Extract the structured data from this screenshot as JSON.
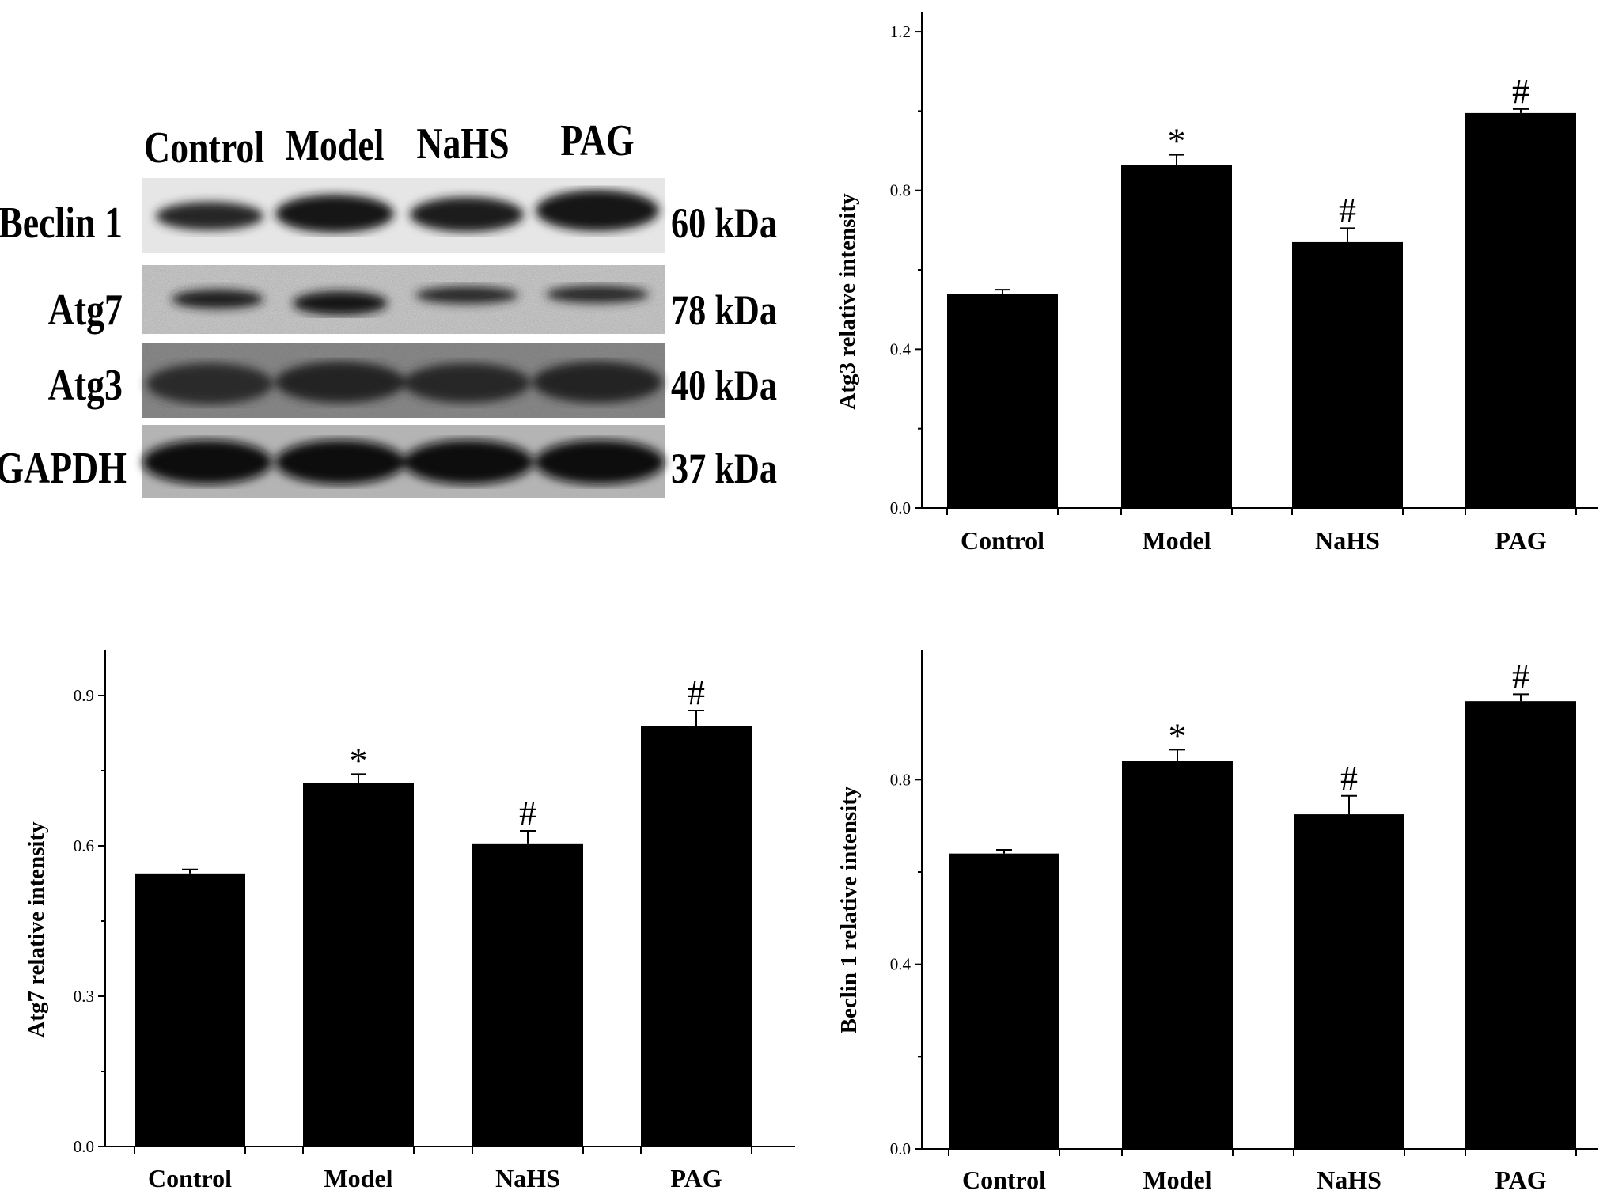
{
  "blot": {
    "lanes": [
      "Control",
      "Model",
      "NaHS",
      "PAG"
    ],
    "rows": [
      {
        "protein": "Beclin 1",
        "size": "60 kDa"
      },
      {
        "protein": "Atg7",
        "size": "78 kDa"
      },
      {
        "protein": "Atg3",
        "size": "40 kDa"
      },
      {
        "protein": "GAPDH",
        "size": "37 kDa"
      }
    ]
  },
  "chart_data": [
    {
      "type": "bar",
      "panel": "top-right",
      "categories": [
        "Control",
        "Model",
        "NaHS",
        "PAG"
      ],
      "values": [
        0.54,
        0.865,
        0.67,
        0.995
      ],
      "errors": [
        0.01,
        0.025,
        0.035,
        0.01
      ],
      "annotations": [
        "",
        "*",
        "#",
        "#"
      ],
      "ylabel": "Atg3 relative intensity",
      "ylim": [
        0,
        1.25
      ],
      "yticks": [
        0.0,
        0.4,
        0.8,
        1.2
      ],
      "ytick_labels": [
        "0.0",
        "0.4",
        "0.8",
        "1.2"
      ]
    },
    {
      "type": "bar",
      "panel": "bottom-left",
      "categories": [
        "Control",
        "Model",
        "NaHS",
        "PAG"
      ],
      "values": [
        0.545,
        0.725,
        0.605,
        0.84
      ],
      "errors": [
        0.008,
        0.018,
        0.025,
        0.03
      ],
      "annotations": [
        "",
        "*",
        "#",
        "#"
      ],
      "ylabel": "Atg7 relative intensity",
      "ylim": [
        0,
        0.99
      ],
      "yticks": [
        0.0,
        0.3,
        0.6,
        0.9
      ],
      "ytick_labels": [
        "0.0",
        "0.3",
        "0.6",
        "0.9"
      ]
    },
    {
      "type": "bar",
      "panel": "bottom-right",
      "categories": [
        "Control",
        "Model",
        "NaHS",
        "PAG"
      ],
      "values": [
        0.64,
        0.84,
        0.725,
        0.97
      ],
      "errors": [
        0.008,
        0.025,
        0.04,
        0.015
      ],
      "annotations": [
        "",
        "*",
        "#",
        "#"
      ],
      "ylabel": "Beclin 1 relative intensity",
      "ylim": [
        0,
        1.08
      ],
      "yticks": [
        0.0,
        0.4,
        0.8
      ],
      "ytick_labels": [
        "0.0",
        "0.4",
        "0.8"
      ]
    }
  ]
}
